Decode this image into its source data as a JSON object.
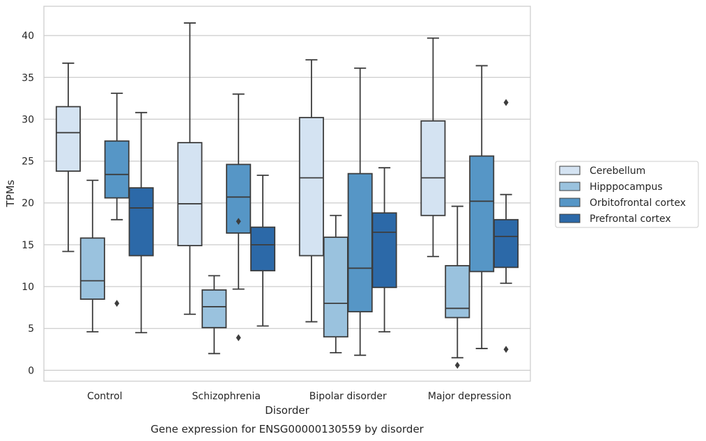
{
  "caption": "Gene expression for ENSG00000130559 by disorder",
  "chart_data": {
    "type": "box",
    "xlabel": "Disorder",
    "ylabel": "TPMs",
    "ylim": [
      -1.3,
      43.5
    ],
    "yticks": [
      0,
      5,
      10,
      15,
      20,
      25,
      30,
      35,
      40
    ],
    "grid": true,
    "legend_position": "right",
    "categories": [
      "Control",
      "Schizophrenia",
      "Bipolar disorder",
      "Major depression"
    ],
    "series": [
      {
        "name": "Cerebellum",
        "color": "#d4e3f2",
        "boxes": [
          {
            "whislo": 14.2,
            "q1": 23.8,
            "med": 28.4,
            "q3": 31.5,
            "whishi": 36.7,
            "fliers": []
          },
          {
            "whislo": 6.7,
            "q1": 14.9,
            "med": 19.9,
            "q3": 27.2,
            "whishi": 41.5,
            "fliers": []
          },
          {
            "whislo": 5.8,
            "q1": 13.7,
            "med": 23.0,
            "q3": 30.2,
            "whishi": 37.1,
            "fliers": []
          },
          {
            "whislo": 13.6,
            "q1": 18.5,
            "med": 23.0,
            "q3": 29.8,
            "whishi": 39.7,
            "fliers": []
          }
        ]
      },
      {
        "name": "Hipppocampus",
        "color": "#9ac2de",
        "boxes": [
          {
            "whislo": 4.6,
            "q1": 8.5,
            "med": 10.7,
            "q3": 15.8,
            "whishi": 22.7,
            "fliers": []
          },
          {
            "whislo": 2.0,
            "q1": 5.1,
            "med": 7.6,
            "q3": 9.6,
            "whishi": 11.3,
            "fliers": []
          },
          {
            "whislo": 2.1,
            "q1": 4.0,
            "med": 8.0,
            "q3": 15.9,
            "whishi": 18.5,
            "fliers": []
          },
          {
            "whislo": 1.5,
            "q1": 6.3,
            "med": 7.4,
            "q3": 12.5,
            "whishi": 19.6,
            "fliers": [
              0.6
            ]
          }
        ]
      },
      {
        "name": "Orbitofrontal cortex",
        "color": "#5696c6",
        "boxes": [
          {
            "whislo": 18.0,
            "q1": 20.6,
            "med": 23.4,
            "q3": 27.4,
            "whishi": 33.1,
            "fliers": [
              8.0
            ]
          },
          {
            "whislo": 9.7,
            "q1": 16.4,
            "med": 20.7,
            "q3": 24.6,
            "whishi": 33.0,
            "fliers": [
              17.8,
              3.9
            ]
          },
          {
            "whislo": 1.8,
            "q1": 7.0,
            "med": 12.2,
            "q3": 23.5,
            "whishi": 36.1,
            "fliers": []
          },
          {
            "whislo": 2.6,
            "q1": 11.8,
            "med": 20.2,
            "q3": 25.6,
            "whishi": 36.4,
            "fliers": []
          }
        ]
      },
      {
        "name": "Prefrontal cortex",
        "color": "#2c69a8",
        "boxes": [
          {
            "whislo": 4.5,
            "q1": 13.7,
            "med": 19.4,
            "q3": 21.8,
            "whishi": 30.8,
            "fliers": []
          },
          {
            "whislo": 5.3,
            "q1": 11.9,
            "med": 15.0,
            "q3": 17.1,
            "whishi": 23.3,
            "fliers": []
          },
          {
            "whislo": 4.6,
            "q1": 9.9,
            "med": 16.5,
            "q3": 18.8,
            "whishi": 24.2,
            "fliers": []
          },
          {
            "whislo": 10.4,
            "q1": 12.3,
            "med": 16.0,
            "q3": 18.0,
            "whishi": 21.0,
            "fliers": [
              32.0,
              2.5
            ]
          }
        ]
      }
    ]
  }
}
